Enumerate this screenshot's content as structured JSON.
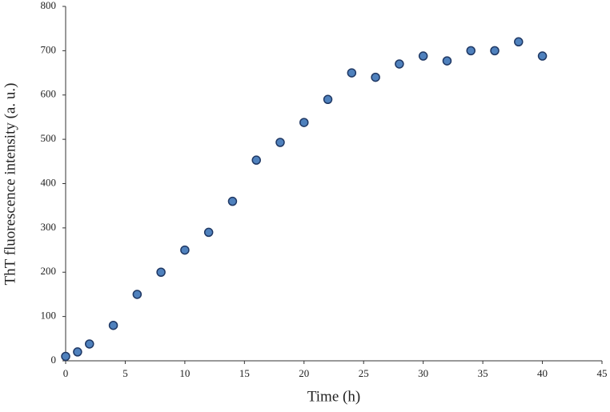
{
  "chart_data": {
    "type": "scatter",
    "x_label": "Time (h)",
    "y_label": "ThT fluorescence intensity (a. u.)",
    "x": [
      0,
      1,
      2,
      4,
      6,
      8,
      10,
      12,
      14,
      16,
      18,
      20,
      22,
      24,
      26,
      28,
      30,
      32,
      34,
      36,
      38,
      40
    ],
    "values": [
      10,
      20,
      38,
      80,
      150,
      200,
      250,
      290,
      360,
      453,
      493,
      538,
      590,
      650,
      640,
      670,
      688,
      677,
      700,
      700,
      720,
      688
    ],
    "color": "#4f81bd",
    "edge_color": "#1f3864",
    "xlim": [
      0,
      45
    ],
    "xticks": [
      0,
      5,
      10,
      15,
      20,
      25,
      30,
      35,
      40,
      45
    ],
    "ylim": [
      0,
      800
    ],
    "yticks": [
      0,
      100,
      200,
      300,
      400,
      500,
      600,
      700,
      800
    ],
    "grid": false
  }
}
